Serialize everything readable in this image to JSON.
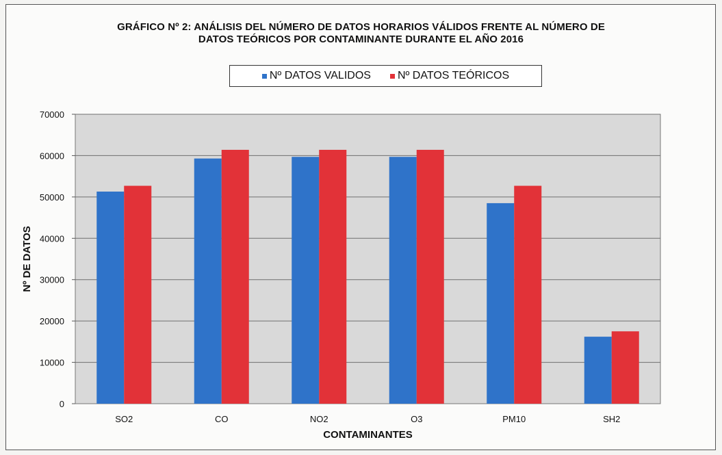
{
  "chart_data": {
    "type": "bar",
    "title_line1": "GRÁFICO Nº 2: ANÁLISIS DEL NÚMERO DE DATOS HORARIOS VÁLIDOS FRENTE AL NÚMERO DE",
    "title_line2": "DATOS TEÓRICOS POR CONTAMINANTE  DURANTE EL AÑO 2016",
    "xlabel": "CONTAMINANTES",
    "ylabel": "Nº DE DATOS",
    "ylim": [
      0,
      70000
    ],
    "yticks": [
      "0",
      "10000",
      "20000",
      "30000",
      "40000",
      "50000",
      "60000",
      "70000"
    ],
    "categories": [
      "SO2",
      "CO",
      "NO2",
      "O3",
      "PM10",
      "SH2"
    ],
    "series": [
      {
        "name": "Nº DATOS VALIDOS",
        "color": "#2f73c9",
        "values": [
          51300,
          59300,
          59700,
          59700,
          48500,
          16200
        ]
      },
      {
        "name": "Nº DATOS TEÓRICOS",
        "color": "#e23238",
        "values": [
          52700,
          61400,
          61400,
          61400,
          52700,
          17500
        ]
      }
    ],
    "grid": true,
    "legend_position": "top"
  }
}
